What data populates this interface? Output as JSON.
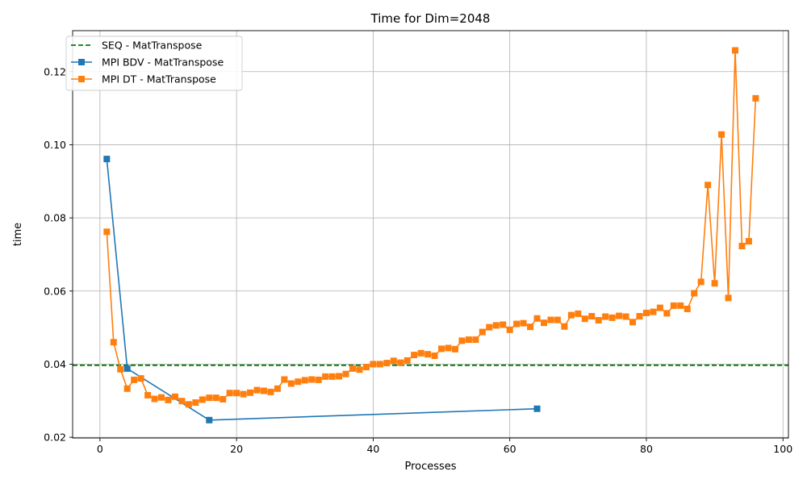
{
  "chart_data": {
    "type": "line",
    "title": "Time for Dim=2048",
    "xlabel": "Processes",
    "ylabel": "time",
    "xlim": [
      -4,
      100.8
    ],
    "ylim": [
      0.0198,
      0.1312
    ],
    "xticks": [
      0,
      20,
      40,
      60,
      80,
      100
    ],
    "yticks": [
      0.02,
      0.04,
      0.06,
      0.08,
      0.1,
      0.12
    ],
    "ytick_labels": [
      "0.02",
      "0.04",
      "0.06",
      "0.08",
      "0.10",
      "0.12"
    ],
    "grid": true,
    "legend_position": "top-left",
    "series": [
      {
        "name": "SEQ - MatTranspose",
        "kind": "hline",
        "style": "dashed",
        "color": "#008000",
        "y": 0.0397
      },
      {
        "name": "MPI BDV - MatTranspose",
        "marker": "square",
        "color": "#1f77b4",
        "x": [
          1,
          4,
          16,
          64
        ],
        "values": [
          0.0961,
          0.0388,
          0.0247,
          0.0278
        ]
      },
      {
        "name": "MPI DT - MatTranspose",
        "marker": "square",
        "color": "#ff7f0e",
        "x": [
          1,
          2,
          3,
          4,
          5,
          6,
          7,
          8,
          9,
          10,
          11,
          12,
          13,
          14,
          15,
          16,
          17,
          18,
          19,
          20,
          21,
          22,
          23,
          24,
          25,
          26,
          27,
          28,
          29,
          30,
          31,
          32,
          33,
          34,
          35,
          36,
          37,
          38,
          39,
          40,
          41,
          42,
          43,
          44,
          45,
          46,
          47,
          48,
          49,
          50,
          51,
          52,
          53,
          54,
          55,
          56,
          57,
          58,
          59,
          60,
          61,
          62,
          63,
          64,
          65,
          66,
          67,
          68,
          69,
          70,
          71,
          72,
          73,
          74,
          75,
          76,
          77,
          78,
          79,
          80,
          81,
          82,
          83,
          84,
          85,
          86,
          87,
          88,
          89,
          90,
          91,
          92,
          93,
          94,
          95,
          96
        ],
        "values": [
          0.0762,
          0.046,
          0.0386,
          0.0333,
          0.0357,
          0.0361,
          0.0315,
          0.0305,
          0.0309,
          0.0302,
          0.0311,
          0.0299,
          0.029,
          0.0295,
          0.0303,
          0.0308,
          0.0308,
          0.0304,
          0.0321,
          0.0321,
          0.0318,
          0.0322,
          0.0329,
          0.0327,
          0.0324,
          0.0333,
          0.0358,
          0.0347,
          0.0352,
          0.0356,
          0.0358,
          0.0357,
          0.0366,
          0.0366,
          0.0367,
          0.0373,
          0.0388,
          0.0385,
          0.0392,
          0.04,
          0.04,
          0.0403,
          0.0409,
          0.0404,
          0.041,
          0.0425,
          0.043,
          0.0427,
          0.0423,
          0.0442,
          0.0444,
          0.0441,
          0.0464,
          0.0467,
          0.0467,
          0.0488,
          0.0501,
          0.0506,
          0.0508,
          0.0494,
          0.051,
          0.0512,
          0.0502,
          0.0525,
          0.0513,
          0.0521,
          0.0521,
          0.0503,
          0.0534,
          0.0538,
          0.0524,
          0.0531,
          0.052,
          0.053,
          0.0527,
          0.0532,
          0.053,
          0.0515,
          0.0531,
          0.054,
          0.0543,
          0.0554,
          0.0539,
          0.056,
          0.056,
          0.0551,
          0.0594,
          0.0625,
          0.089,
          0.0621,
          0.1028,
          0.0581,
          0.1258,
          0.0723,
          0.0736,
          0.1127
        ]
      }
    ]
  }
}
